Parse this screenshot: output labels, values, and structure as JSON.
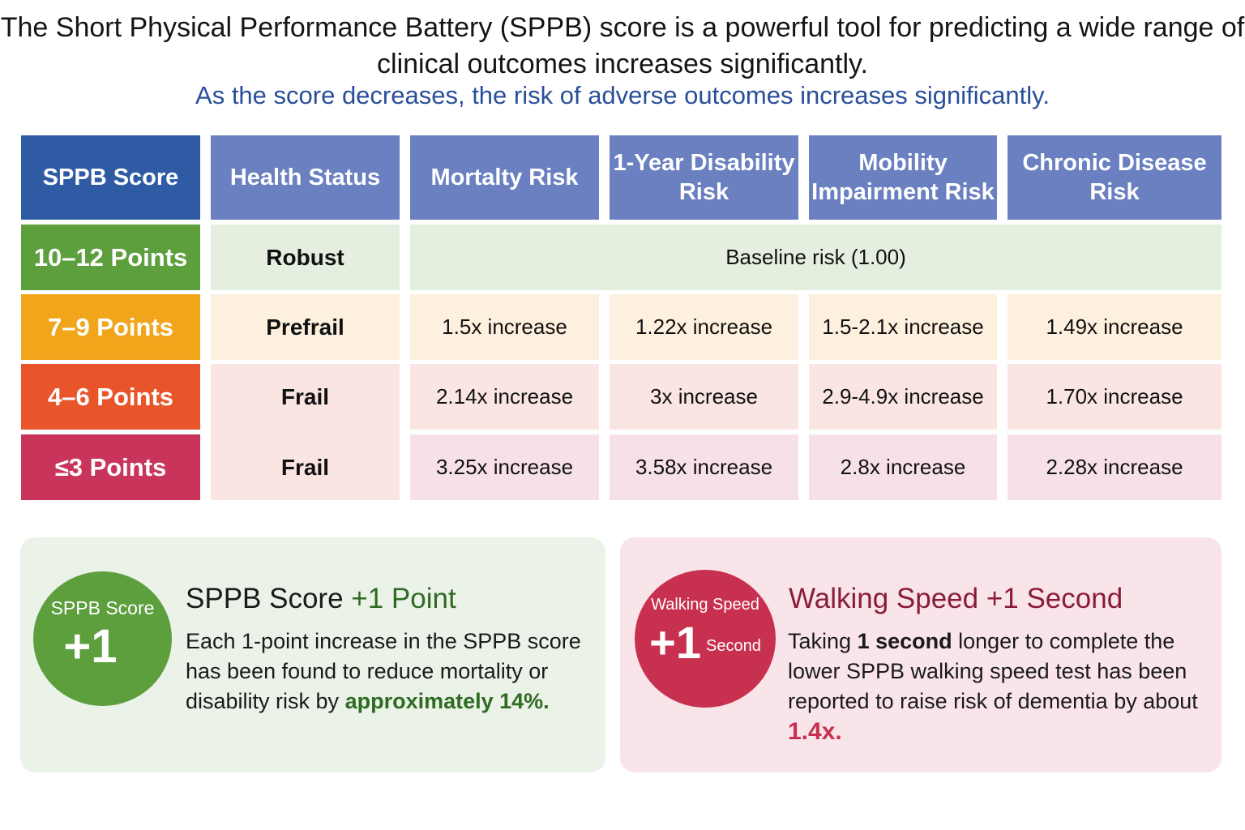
{
  "header": {
    "title": "The Short Physical Performance Battery (SPPB) score is a powerful tool for predicting a wide range of clinical outcomes increases significantly.",
    "subtitle": "As the score decreases, the risk of adverse outcomes increases significantly."
  },
  "table": {
    "columns": [
      "SPPB Score",
      "Health Status",
      "Mortalty Risk",
      "1-Year Disability Risk",
      "Mobility Impairment Risk",
      "Chronic Disease Risk"
    ],
    "rows": [
      {
        "score": "10–12 Points",
        "status": "Robust",
        "baseline": "Baseline risk (1.00)",
        "color": "#5d9e3d",
        "bg": "#e5efdf"
      },
      {
        "score": "7–9 Points",
        "status": "Prefrail",
        "values": [
          "1.5x increase",
          "1.22x increase",
          "1.5-2.1x increase",
          "1.49x increase"
        ],
        "color": "#f0a51b",
        "bg": "#fdf0de"
      },
      {
        "score": "4–6 Points",
        "status": "Frail",
        "values": [
          "2.14x increase",
          "3x increase",
          "2.9-4.9x increase",
          "1.70x increase"
        ],
        "color": "#e9552b",
        "bg": "#fbe5e2"
      },
      {
        "score": "≤3 Points",
        "status": "Frail",
        "values": [
          "3.25x increase",
          "3.58x increase",
          "2.8x increase",
          "2.28x increase"
        ],
        "color": "#c9355a",
        "bg": "#f7e1e7"
      }
    ]
  },
  "cards": {
    "score": {
      "circle_label": "SPPB Score",
      "circle_value": "+1",
      "title_a": "SPPB Score ",
      "title_b": "+1 Point",
      "body_a": "Each 1-point increase in the SPPB score has been found to reduce mortality or disability risk by ",
      "body_b": "approximately 14%.",
      "color": "#5d9e3d"
    },
    "walking": {
      "circle_label": "Walking Speed",
      "circle_value": "+1",
      "circle_unit": "Second",
      "title": "Walking Speed +1 Second",
      "body_a": "Taking ",
      "body_b": "1 second",
      "body_c": " longer to complete the lower SPPB walking speed test has been reported to raise risk of dementia by about ",
      "body_d": "1.4x.",
      "color": "#c8304f"
    }
  }
}
